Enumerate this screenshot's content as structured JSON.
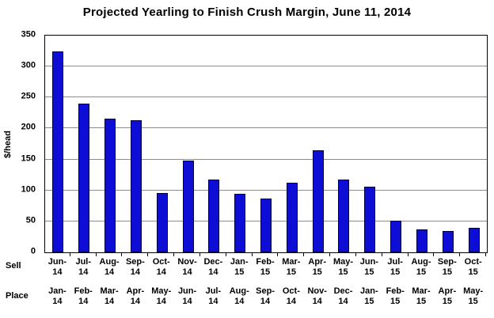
{
  "title": "Projected Yearling to Finish Crush Margin, June 11, 2014",
  "chart_data": {
    "type": "bar",
    "title": "Projected Yearling to Finish Crush Margin, June 11, 2014",
    "ylabel": "$/head",
    "ylim": [
      0,
      350
    ],
    "ytick_step": 50,
    "grid": true,
    "bar_color": "#0d0dd6",
    "x_axis_rows": [
      {
        "header": "Sell",
        "labels": [
          "Jun-14",
          "Jul-14",
          "Aug-14",
          "Sep-14",
          "Oct-14",
          "Nov-14",
          "Dec-14",
          "Jan-15",
          "Feb-15",
          "Mar-15",
          "Apr-15",
          "May-15",
          "Jun-15",
          "Jul-15",
          "Aug-15",
          "Sep-15",
          "Oct-15"
        ]
      },
      {
        "header": "Place",
        "labels": [
          "Jan-14",
          "Feb-14",
          "Mar-14",
          "Apr-14",
          "May-14",
          "Jun-14",
          "Jul-14",
          "Aug-14",
          "Sep-14",
          "Oct-14",
          "Nov-14",
          "Dec-14",
          "Jan-15",
          "Feb-15",
          "Mar-15",
          "Apr-15",
          "May-15"
        ]
      }
    ],
    "values": [
      325,
      240,
      216,
      213,
      96,
      148,
      117,
      95,
      87,
      112,
      165,
      118,
      106,
      51,
      37,
      34,
      39
    ]
  }
}
